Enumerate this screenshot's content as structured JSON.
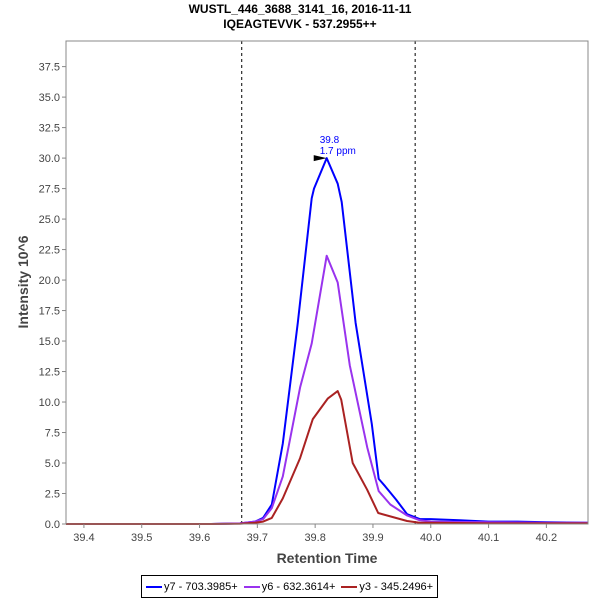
{
  "chart_data": {
    "type": "line",
    "title": "WUSTL_446_3688_3141_16, 2016-11-11",
    "subtitle": "IQEAGTEVVK - 537.2955++",
    "xlabel": "Retention Time",
    "ylabel": "Intensity 10^6",
    "xlim": [
      39.369,
      40.272
    ],
    "ylim": [
      0,
      39.6
    ],
    "xticks": [
      "39.4",
      "39.5",
      "39.6",
      "39.7",
      "39.8",
      "39.9",
      "40.0",
      "40.1",
      "40.2"
    ],
    "yticks": [
      "0.0",
      "2.5",
      "5.0",
      "7.5",
      "10.0",
      "12.5",
      "15.0",
      "17.5",
      "20.0",
      "22.5",
      "25.0",
      "27.5",
      "30.0",
      "32.5",
      "35.0",
      "37.5"
    ],
    "boundaries": [
      39.673,
      39.973
    ],
    "annotation": {
      "x": 39.82,
      "y": 30.0,
      "line1": "39.8",
      "line2": "1.7 ppm"
    },
    "legend_position": "bottom",
    "series": [
      {
        "name": "y7 - 703.3985+",
        "color": "#0000ff",
        "x": [
          39.369,
          39.62,
          39.67,
          39.696,
          39.71,
          39.725,
          39.744,
          39.77,
          39.794,
          39.798,
          39.82,
          39.839,
          39.846,
          39.87,
          39.898,
          39.91,
          39.921,
          39.94,
          39.959,
          39.981,
          40.0,
          40.05,
          40.1,
          40.15,
          40.2,
          40.272
        ],
        "y": [
          0,
          0,
          0.05,
          0.2,
          0.5,
          1.6,
          6.6,
          16.5,
          26.7,
          27.5,
          30.0,
          27.9,
          26.4,
          16.5,
          8.2,
          3.7,
          3.1,
          2.0,
          0.8,
          0.4,
          0.4,
          0.3,
          0.2,
          0.2,
          0.15,
          0.1
        ]
      },
      {
        "name": "y6 - 632.3614+",
        "color": "#9933ee",
        "x": [
          39.369,
          39.62,
          39.67,
          39.696,
          39.71,
          39.725,
          39.744,
          39.774,
          39.794,
          39.82,
          39.839,
          39.86,
          39.89,
          39.91,
          39.93,
          39.959,
          39.981,
          40.0,
          40.1,
          40.2,
          40.272
        ],
        "y": [
          0,
          0,
          0.05,
          0.2,
          0.4,
          1.3,
          3.9,
          11.2,
          14.8,
          22.0,
          19.8,
          13.0,
          6.3,
          2.7,
          1.6,
          0.7,
          0.3,
          0.2,
          0.15,
          0.1,
          0.1
        ]
      },
      {
        "name": "y3 - 345.2496+",
        "color": "#aa2222",
        "x": [
          39.369,
          39.62,
          39.67,
          39.696,
          39.71,
          39.725,
          39.744,
          39.774,
          39.796,
          39.822,
          39.839,
          39.845,
          39.865,
          39.89,
          39.909,
          39.959,
          39.981,
          40.0,
          40.1,
          40.2,
          40.272
        ],
        "y": [
          0,
          0,
          0.02,
          0.1,
          0.2,
          0.5,
          2.1,
          5.4,
          8.6,
          10.3,
          10.9,
          10.2,
          5.0,
          2.8,
          0.9,
          0.25,
          0.1,
          0.1,
          0.05,
          0.05,
          0.05
        ]
      }
    ]
  }
}
